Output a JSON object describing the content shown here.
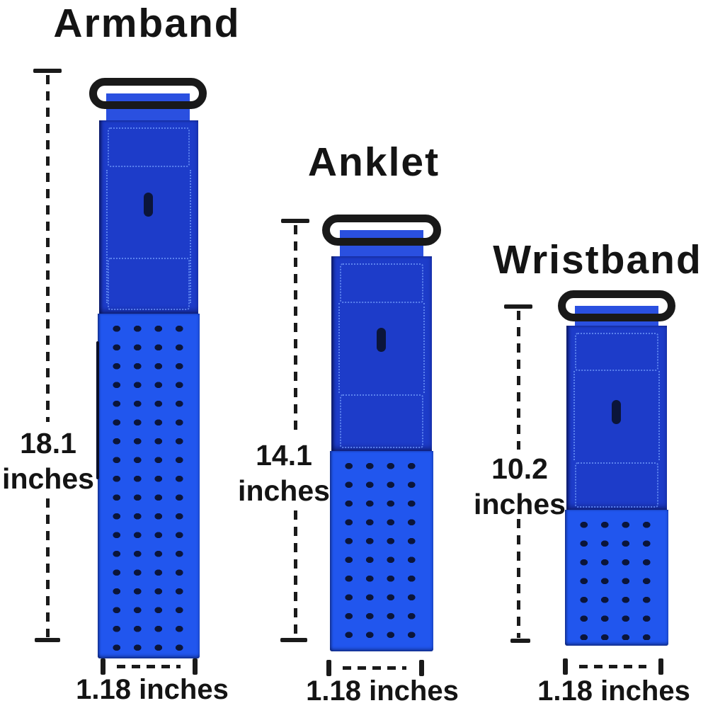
{
  "diagram": {
    "description_note": "",
    "colors": {
      "bg": "#ffffff",
      "text": "#141414",
      "line": "#1a1a1a",
      "buckle": "#191919",
      "strap_dark": "#1d3cc9",
      "strap_light": "#2156ee",
      "strap_stub": "#2a50e0",
      "stitch": "#5b82ee",
      "hole": "#0b153a"
    },
    "bands": [
      {
        "id": "armband",
        "title": "Armband",
        "length_value": "18.1",
        "length_unit": "inches",
        "width_label": "1.18 inches"
      },
      {
        "id": "anklet",
        "title": "Anklet",
        "length_value": "14.1",
        "length_unit": "inches",
        "width_label": "1.18 inches"
      },
      {
        "id": "wristband",
        "title": "Wristband",
        "length_value": "10.2",
        "length_unit": "inches",
        "width_label": "1.18 inches"
      }
    ]
  }
}
